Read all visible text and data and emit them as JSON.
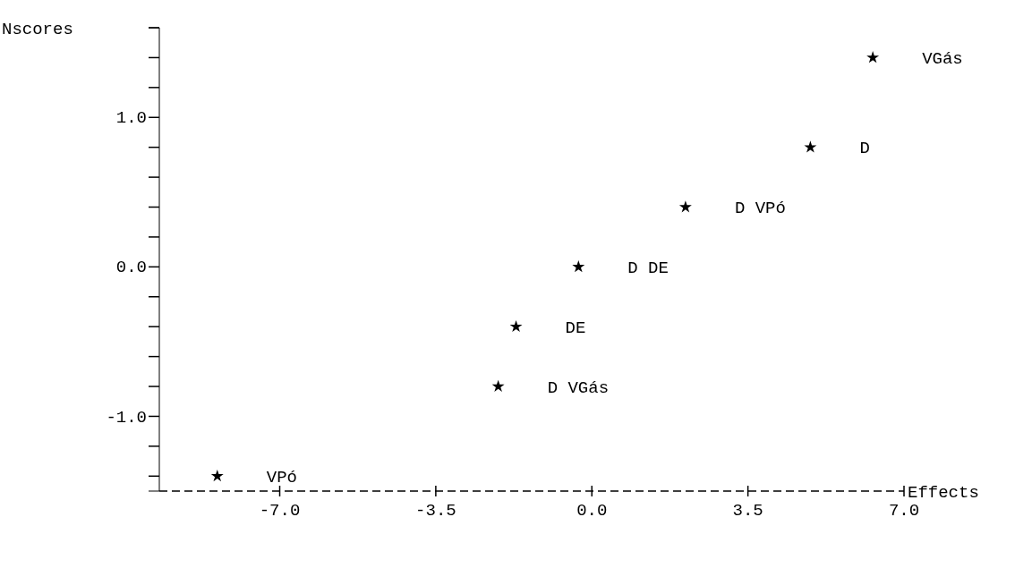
{
  "chart_data": {
    "type": "scatter",
    "xlabel": "Effects",
    "ylabel": "Nscores",
    "marker": "star",
    "grid": false,
    "x": [
      6.3,
      4.9,
      2.1,
      -0.3,
      -1.7,
      -2.1,
      -8.4
    ],
    "values": [
      1.4,
      0.8,
      0.4,
      0.0,
      -0.4,
      -0.8,
      -1.4
    ],
    "color": "#000000",
    "xlim": [
      -9.7,
      7
    ],
    "ylim": [
      -1.5,
      1.6
    ],
    "xticks": [
      {
        "value": -7,
        "label": "-7.0"
      },
      {
        "value": -3.5,
        "label": "-3.5"
      },
      {
        "value": 0,
        "label": "0.0"
      },
      {
        "value": 3.5,
        "label": "3.5"
      },
      {
        "value": 7,
        "label": "7.0"
      }
    ],
    "yticks": [
      {
        "value": -1.4,
        "label": null
      },
      {
        "value": -1.2,
        "label": null
      },
      {
        "value": -1,
        "label": "-1.0"
      },
      {
        "value": -0.8,
        "label": null
      },
      {
        "value": -0.6,
        "label": null
      },
      {
        "value": -0.4,
        "label": null
      },
      {
        "value": -0.2,
        "label": null
      },
      {
        "value": 0,
        "label": "0.0"
      },
      {
        "value": 0.2,
        "label": null
      },
      {
        "value": 0.4,
        "label": null
      },
      {
        "value": 0.6,
        "label": null
      },
      {
        "value": 0.8,
        "label": null
      },
      {
        "value": 1,
        "label": "1.0"
      },
      {
        "value": 1.2,
        "label": null
      },
      {
        "value": 1.4,
        "label": null
      },
      {
        "value": 1.6,
        "label": null
      }
    ],
    "annotations": [
      {
        "text": "VGás",
        "x": 6.3,
        "y": 1.4
      },
      {
        "text": "D",
        "x": 4.9,
        "y": 0.8
      },
      {
        "text": "D VPó",
        "x": 2.1,
        "y": 0.4
      },
      {
        "text": "D DE",
        "x": -0.3,
        "y": 0.0
      },
      {
        "text": "DE",
        "x": -1.7,
        "y": -0.4
      },
      {
        "text": "D VGás",
        "x": -2.1,
        "y": -0.8
      },
      {
        "text": "VPó",
        "x": -8.4,
        "y": -1.4
      }
    ]
  }
}
